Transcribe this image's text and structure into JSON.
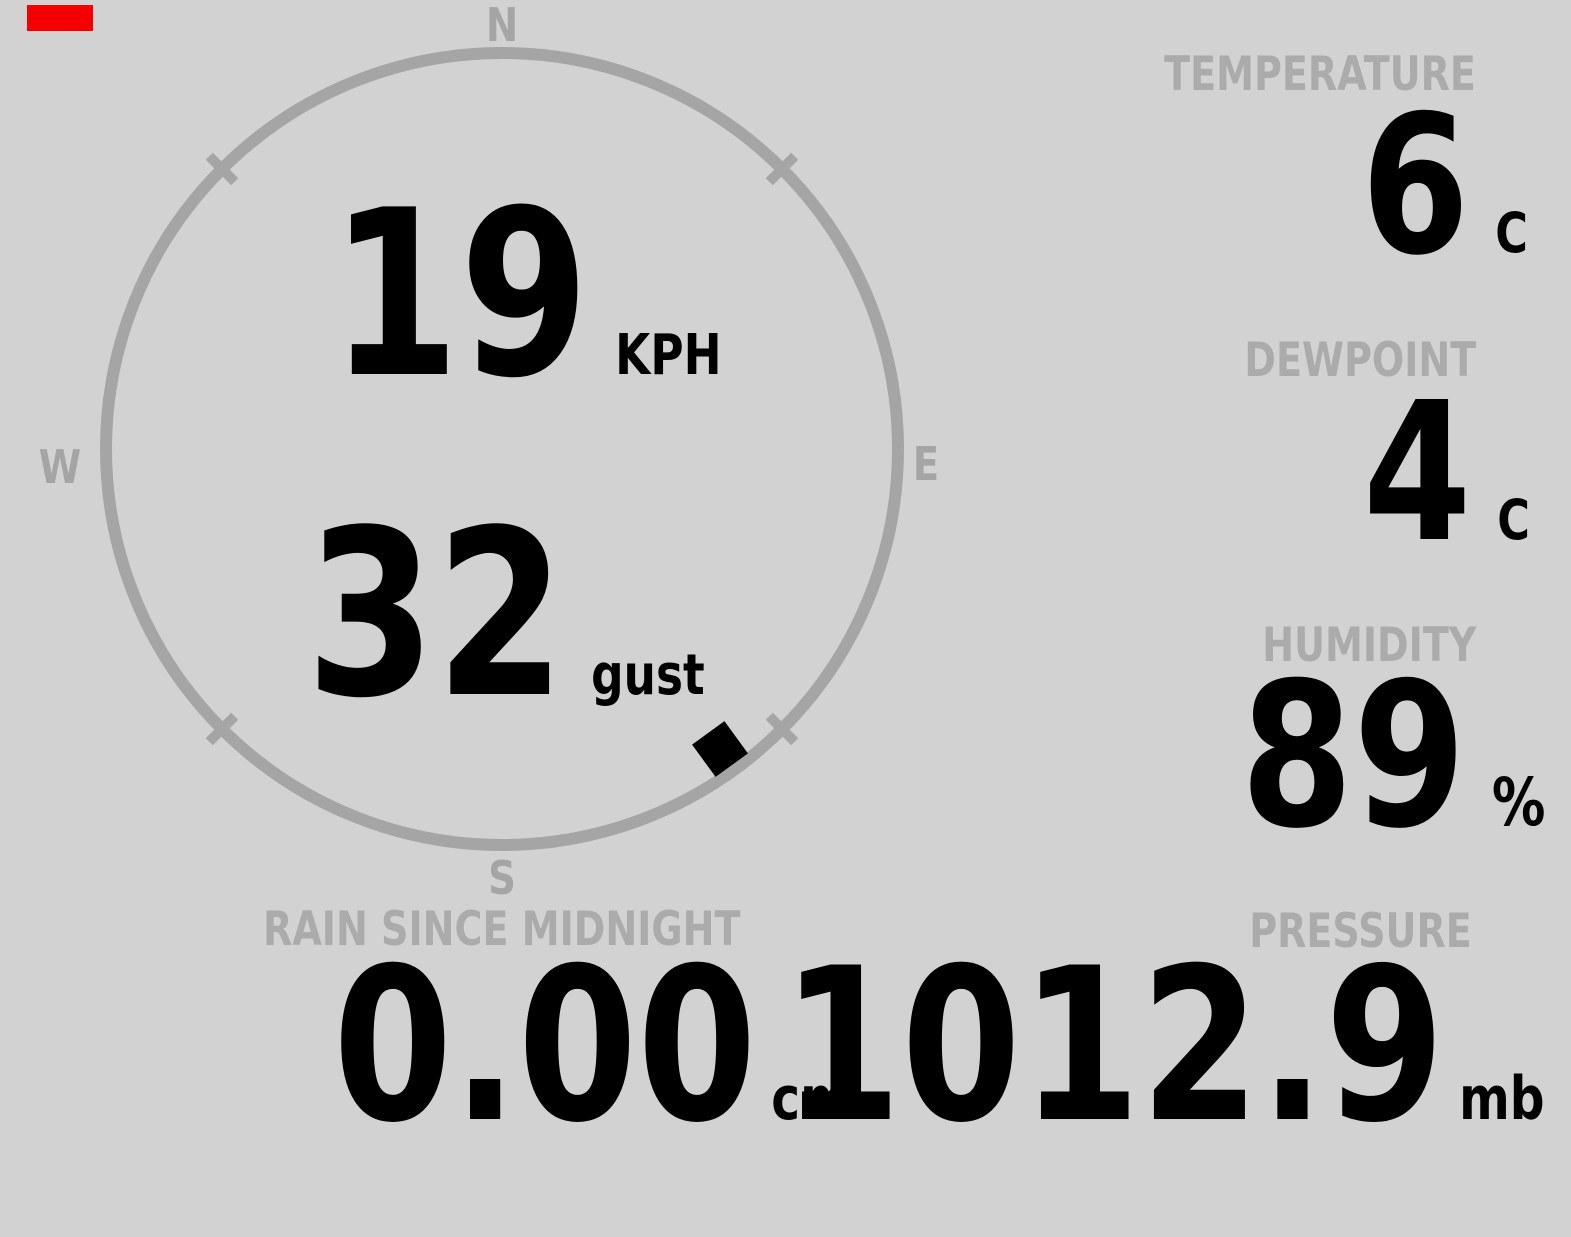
{
  "colors": {
    "background": "#d2d2d2",
    "muted_gray": "#a5a5a5",
    "label_gray": "#ababab",
    "value_black": "#000000",
    "status_red": "#f40000"
  },
  "wind": {
    "speed": "19",
    "speed_unit": "KPH",
    "gust": "32",
    "gust_unit": "gust",
    "direction_degrees": 144,
    "compass": {
      "north": "N",
      "south": "S",
      "east": "E",
      "west": "W"
    }
  },
  "readings": {
    "temperature": {
      "label": "TEMPERATURE",
      "value": "6",
      "unit": "C"
    },
    "dewpoint": {
      "label": "DEWPOINT",
      "value": "4",
      "unit": "C"
    },
    "humidity": {
      "label": "HUMIDITY",
      "value": "89",
      "unit": "%"
    },
    "rain": {
      "label": "RAIN SINCE MIDNIGHT",
      "value": "0.00",
      "unit": "cm"
    },
    "pressure": {
      "label": "PRESSURE",
      "value": "1012.9",
      "unit": "mb"
    }
  }
}
